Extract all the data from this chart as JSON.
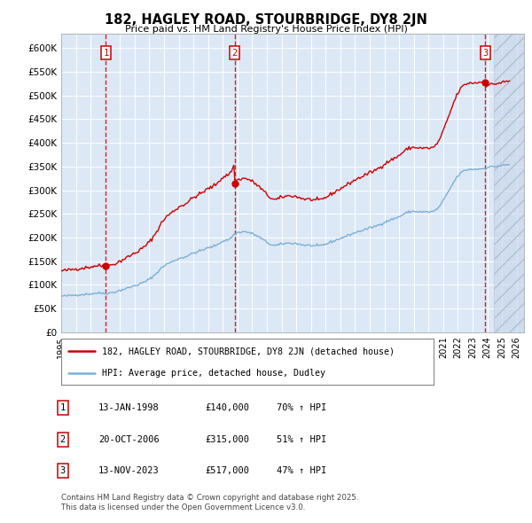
{
  "title": "182, HAGLEY ROAD, STOURBRIDGE, DY8 2JN",
  "subtitle": "Price paid vs. HM Land Registry's House Price Index (HPI)",
  "legend_line1": "182, HAGLEY ROAD, STOURBRIDGE, DY8 2JN (detached house)",
  "legend_line2": "HPI: Average price, detached house, Dudley",
  "sale1_date": "13-JAN-1998",
  "sale1_price": 140000,
  "sale1_hpi": "70% ↑ HPI",
  "sale1_x": 1998.04,
  "sale2_date": "20-OCT-2006",
  "sale2_price": 315000,
  "sale2_hpi": "51% ↑ HPI",
  "sale2_x": 2006.8,
  "sale3_date": "13-NOV-2023",
  "sale3_price": 517000,
  "sale3_hpi": "47% ↑ HPI",
  "sale3_x": 2023.87,
  "footnote1": "Contains HM Land Registry data © Crown copyright and database right 2025.",
  "footnote2": "This data is licensed under the Open Government Licence v3.0.",
  "plot_bg_color": "#dce8f5",
  "hpi_line_color": "#7ab0d8",
  "price_line_color": "#cc0000",
  "vline_color": "#cc0000",
  "ylim": [
    0,
    630000
  ],
  "ytop_tick": 600000,
  "xlim_start": 1995.0,
  "xlim_end": 2026.5,
  "ytick_step": 50000,
  "hatch_start": 2024.42
}
